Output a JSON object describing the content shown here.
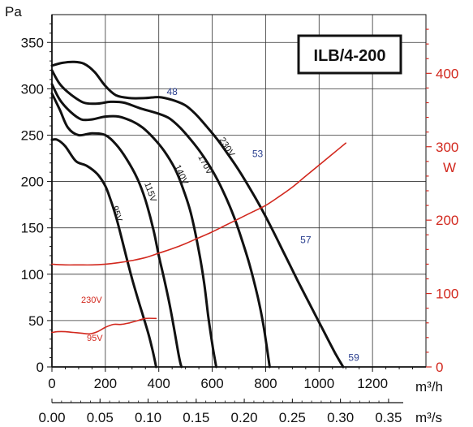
{
  "chart_data": {
    "type": "line",
    "title": "ILB/4-200",
    "left_axis": {
      "unit": "Pa",
      "range": [
        0,
        380
      ],
      "ticks": [
        0,
        50,
        100,
        150,
        200,
        250,
        300,
        350
      ]
    },
    "right_axis": {
      "unit": "W",
      "range": [
        0,
        480
      ],
      "ticks": [
        0,
        100,
        200,
        300,
        400
      ]
    },
    "x_axis": {
      "unit": "m³/h",
      "range": [
        0,
        1400
      ],
      "ticks": [
        0,
        200,
        400,
        600,
        800,
        1000,
        1200
      ]
    },
    "x2_axis": {
      "unit": "m³/s",
      "ticks": [
        "0.00",
        "0.05",
        "0.10",
        "0.15",
        "0.20",
        "0.25",
        "0.30",
        "0.35"
      ]
    },
    "grid": true,
    "series": [
      {
        "name": "230V",
        "axis": "left",
        "color": "#111111",
        "x": [
          0,
          40,
          80,
          120,
          160,
          200,
          240,
          290,
          350,
          400,
          450,
          500,
          540,
          580,
          620,
          660,
          700,
          740,
          780,
          820,
          870,
          920,
          970,
          1020,
          1060,
          1090
        ],
        "y": [
          325,
          328,
          329,
          327,
          318,
          303,
          293,
          290,
          290,
          291,
          288,
          282,
          272,
          259,
          245,
          229,
          212,
          193,
          173,
          151,
          122,
          93,
          65,
          37,
          15,
          0
        ]
      },
      {
        "name": "170V",
        "axis": "left",
        "color": "#111111",
        "x": [
          0,
          30,
          70,
          120,
          170,
          220,
          270,
          330,
          400,
          440,
          480,
          520,
          560,
          600,
          640,
          680,
          710,
          740,
          770,
          790,
          805,
          815
        ],
        "y": [
          320,
          305,
          294,
          285,
          284,
          286,
          285,
          279,
          273,
          268,
          258,
          245,
          230,
          212,
          190,
          163,
          138,
          110,
          76,
          48,
          20,
          0
        ]
      },
      {
        "name": "140V",
        "axis": "left",
        "color": "#111111",
        "x": [
          0,
          30,
          70,
          110,
          150,
          200,
          250,
          300,
          340,
          380,
          420,
          460,
          490,
          520,
          550,
          570,
          585,
          600,
          610,
          615
        ],
        "y": [
          305,
          288,
          275,
          267,
          267,
          270,
          270,
          265,
          258,
          247,
          233,
          214,
          193,
          166,
          125,
          90,
          55,
          25,
          8,
          0
        ]
      },
      {
        "name": "115V",
        "axis": "left",
        "color": "#111111",
        "x": [
          0,
          30,
          60,
          100,
          150,
          200,
          240,
          280,
          320,
          350,
          380,
          400,
          420,
          440,
          455,
          470,
          480,
          485
        ],
        "y": [
          295,
          277,
          258,
          250,
          252,
          250,
          240,
          224,
          203,
          180,
          148,
          120,
          95,
          68,
          45,
          20,
          5,
          0
        ]
      },
      {
        "name": "95V",
        "axis": "left",
        "color": "#111111",
        "x": [
          0,
          20,
          50,
          90,
          130,
          170,
          200,
          220,
          240,
          260,
          280,
          300,
          320,
          340,
          360,
          375,
          385,
          390
        ],
        "y": [
          245,
          245,
          238,
          222,
          217,
          208,
          195,
          180,
          162,
          140,
          117,
          95,
          75,
          56,
          37,
          20,
          7,
          0
        ]
      },
      {
        "name": "230V",
        "axis": "right",
        "color": "#d2281e",
        "x": [
          0,
          50,
          100,
          150,
          200,
          250,
          300,
          350,
          400,
          450,
          500,
          550,
          600,
          650,
          700,
          750,
          800,
          850,
          900,
          950,
          1000,
          1050,
          1100
        ],
        "y": [
          140,
          139,
          139,
          139,
          140,
          142,
          145,
          149,
          155,
          161,
          168,
          176,
          184,
          193,
          202,
          211,
          220,
          232,
          245,
          260,
          275,
          290,
          305
        ]
      },
      {
        "name": "95V",
        "axis": "right",
        "color": "#d2281e",
        "x": [
          0,
          20,
          50,
          80,
          110,
          140,
          170,
          200,
          230,
          260,
          290,
          320,
          350,
          390
        ],
        "y": [
          47,
          48,
          48,
          47,
          46,
          45,
          48,
          54,
          58,
          58,
          60,
          63,
          66,
          66
        ]
      }
    ],
    "annotations": [
      {
        "text": "48",
        "x": 450,
        "y": 297
      },
      {
        "text": "53",
        "x": 770,
        "y": 230
      },
      {
        "text": "57",
        "x": 950,
        "y": 137
      },
      {
        "text": "59",
        "x": 1130,
        "y": 10
      }
    ]
  }
}
